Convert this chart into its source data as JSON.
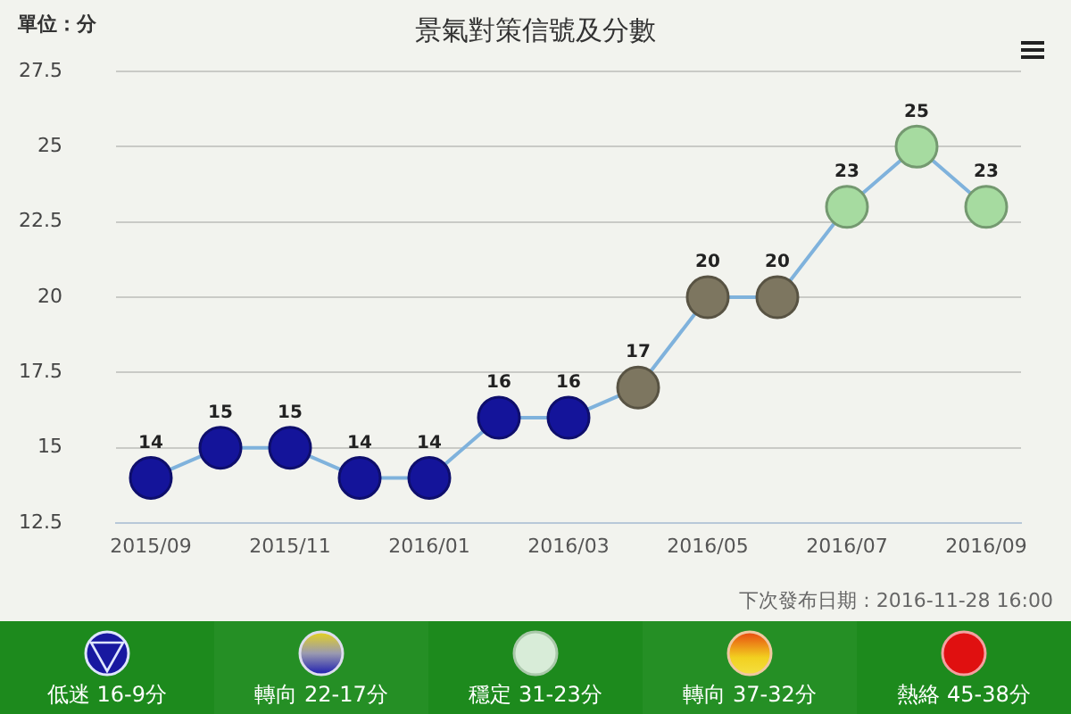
{
  "chart_data": {
    "type": "line",
    "title": "景氣對策信號及分數",
    "ylabel": "單位：分",
    "categories": [
      "2015/09",
      null,
      "2015/11",
      null,
      "2016/01",
      null,
      "2016/03",
      null,
      "2016/05",
      null,
      "2016/07",
      null,
      "2016/09"
    ],
    "series": [
      {
        "color": "#7fb2dc",
        "colors": [
          "#14149a",
          "#14149a",
          "#14149a",
          "#14149a",
          "#14149a",
          "#14149a",
          "#14149a",
          "#7d7660",
          "#7d7660",
          "#7d7660",
          "#a6dba0",
          "#a6dba0",
          "#a6dba0"
        ],
        "values": [
          14,
          15,
          15,
          14,
          14,
          16,
          16,
          17,
          20,
          20,
          23,
          25,
          23
        ]
      }
    ],
    "ylim": [
      12.5,
      27.5
    ],
    "yticks": [
      12.5,
      15,
      17.5,
      20,
      22.5,
      25,
      27.5
    ],
    "grid": "y",
    "marker": "circle",
    "data_labels": true,
    "legend": false,
    "annotations": [
      "下次發布日期 : 2016-11-28 16:00",
      "低迷 16-9分",
      "轉向 22-17分",
      "穩定 31-23分",
      "轉向 37-32分",
      "熱絡 45-38分"
    ]
  }
}
